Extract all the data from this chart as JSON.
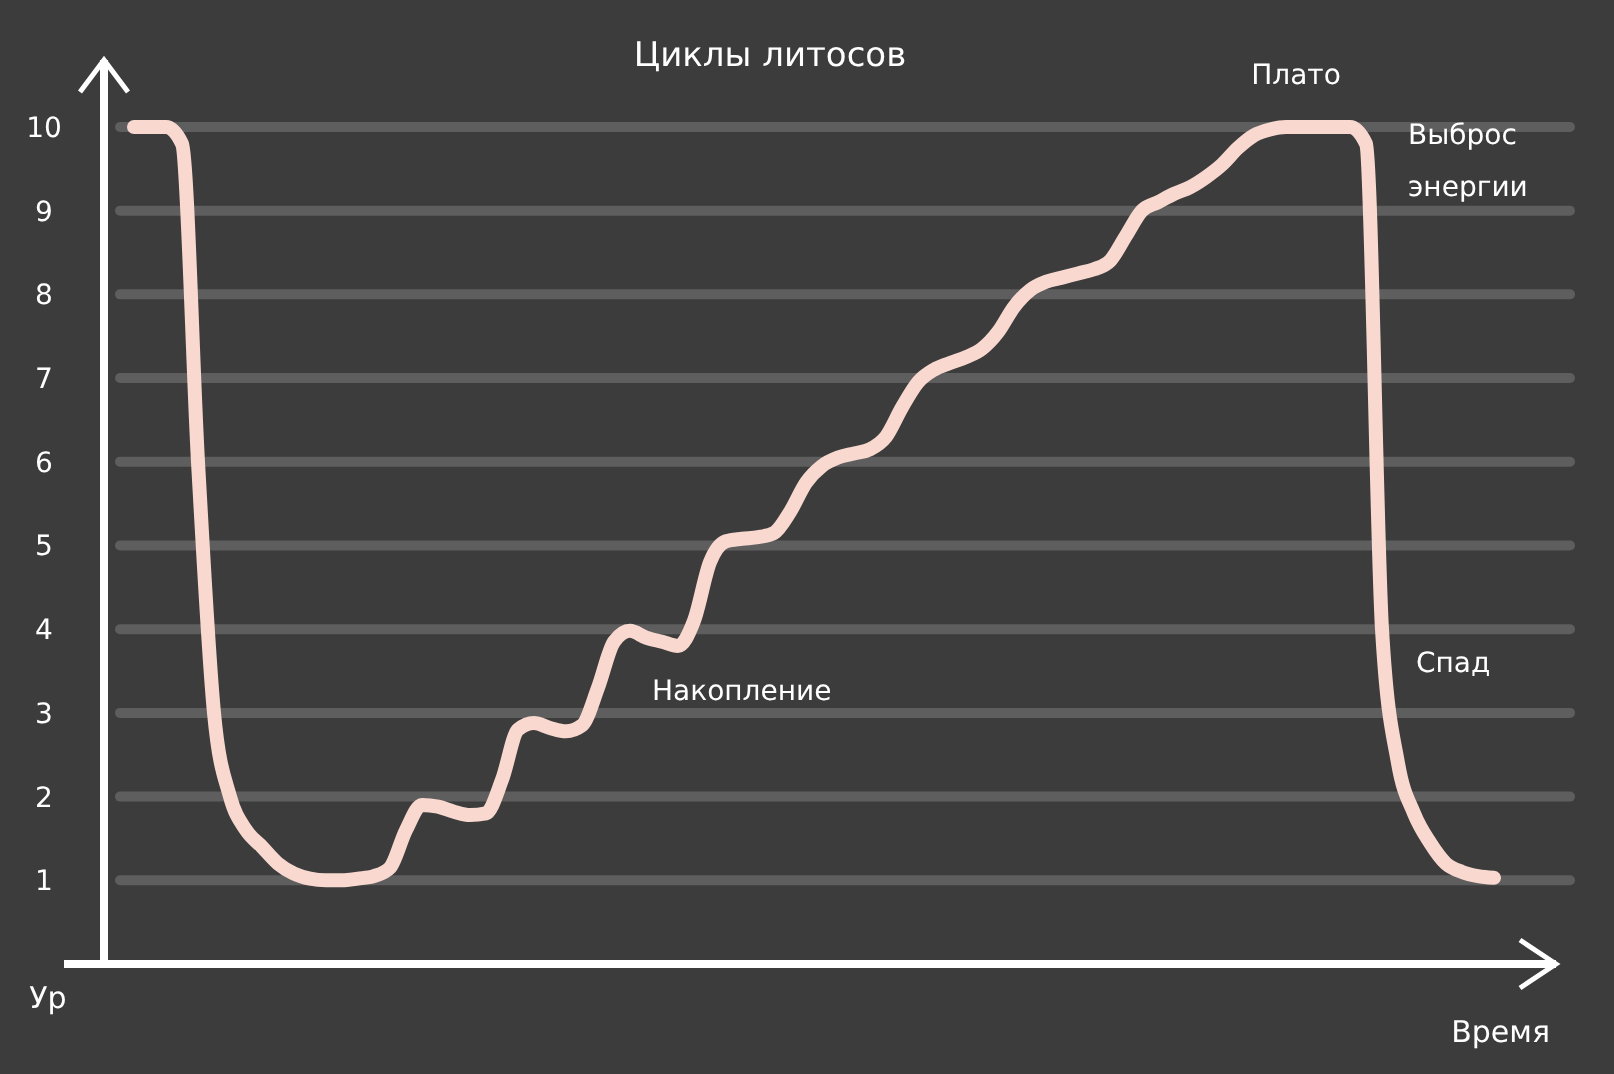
{
  "chart_data": {
    "type": "line",
    "title": "Циклы литосов",
    "xlabel": "Время",
    "ylabel": "Ур",
    "categories": [
      null,
      null,
      null,
      null,
      null,
      null,
      null,
      null,
      null,
      null,
      null,
      null,
      null,
      null,
      null,
      null,
      null,
      null,
      null,
      null,
      null,
      null,
      null,
      null,
      null,
      null,
      null,
      null,
      null,
      null,
      null,
      null,
      null,
      null,
      null,
      null,
      null,
      null,
      null,
      null,
      null,
      null,
      null,
      null,
      null,
      null,
      null,
      null,
      null,
      null,
      null,
      null,
      null,
      null,
      null,
      null,
      null,
      null,
      null,
      null,
      null,
      null,
      null,
      null,
      null,
      null,
      null,
      null,
      null,
      null,
      null,
      null,
      null,
      null,
      null,
      null,
      null,
      null,
      null,
      null,
      null,
      null,
      null,
      null,
      null,
      null
    ],
    "series": [
      {
        "color": "#f9d9cf",
        "values": [
          10,
          10,
          10,
          9.8,
          6,
          3.0,
          2.0,
          1.6,
          1.4,
          1.2,
          1.08,
          1.02,
          1.0,
          1.0,
          1.02,
          1.05,
          1.15,
          1.6,
          1.9,
          1.88,
          1.82,
          1.78,
          1.8,
          2.2,
          2.8,
          2.88,
          2.82,
          2.78,
          2.85,
          3.3,
          3.85,
          3.98,
          3.9,
          3.85,
          3.8,
          4.1,
          4.8,
          5.05,
          5.08,
          5.1,
          5.15,
          5.4,
          5.75,
          5.95,
          6.05,
          6.1,
          6.15,
          6.3,
          6.65,
          6.95,
          7.1,
          7.18,
          7.25,
          7.35,
          7.55,
          7.85,
          8.05,
          8.15,
          8.2,
          8.25,
          8.3,
          8.4,
          8.7,
          9.0,
          9.1,
          9.2,
          9.28,
          9.4,
          9.55,
          9.75,
          9.9,
          9.97,
          10,
          10,
          10,
          10,
          10,
          9.8,
          4.0,
          2.4,
          1.8,
          1.45,
          1.2,
          1.1,
          1.05,
          1.03
        ]
      }
    ],
    "ylim": [
      0,
      10.8
    ],
    "yticks": [
      1,
      2,
      3,
      4,
      5,
      6,
      7,
      8,
      9,
      10
    ],
    "grid": "y",
    "line_style": "solid",
    "marker": "none",
    "annotations": [
      "Плато",
      "Выброс энергии",
      "Накопление",
      "Спад"
    ]
  }
}
